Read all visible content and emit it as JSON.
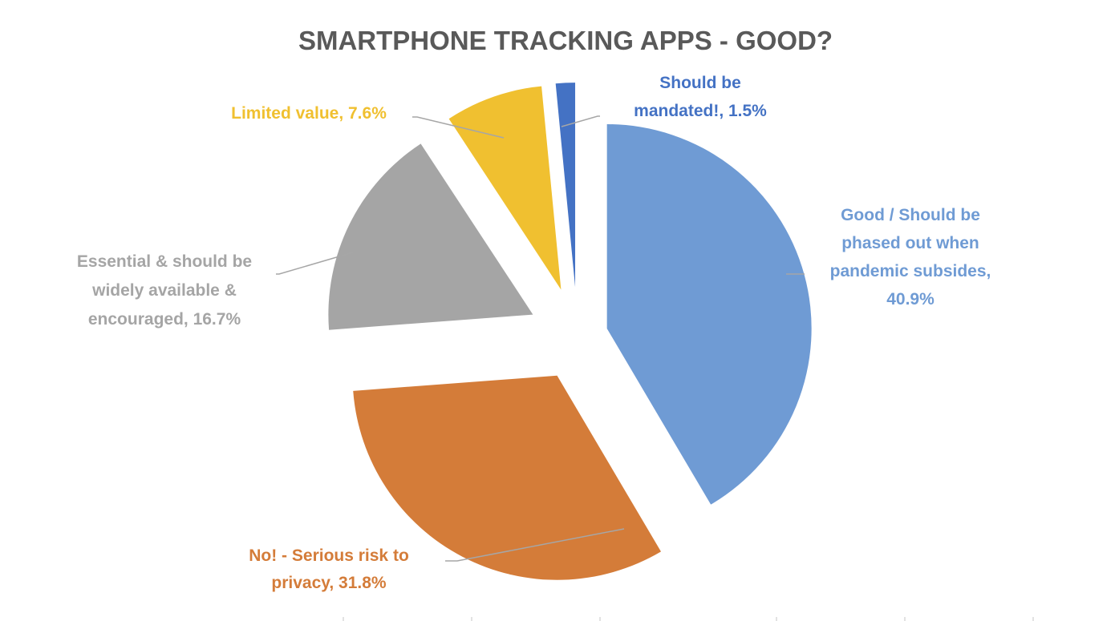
{
  "chart_data": {
    "type": "pie",
    "title": "SMARTPHONE TRACKING APPS - GOOD?",
    "exploded": true,
    "start_angle_deg": 0,
    "direction": "clockwise",
    "slices": [
      {
        "label_lines": [
          "Good / Should be",
          "phased out when",
          "pandemic subsides,",
          "40.9%"
        ],
        "value": 40.9,
        "color": "#6f9bd4"
      },
      {
        "label_lines": [
          "No! - Serious risk to",
          "privacy, 31.8%"
        ],
        "value": 31.8,
        "color": "#d47c39"
      },
      {
        "label_lines": [
          "Essential & should be",
          "widely available &",
          "encouraged, 16.7%"
        ],
        "value": 16.7,
        "color": "#a5a5a5"
      },
      {
        "label_lines": [
          "Limited value, 7.6%"
        ],
        "value": 7.6,
        "color": "#f0c030"
      },
      {
        "label_lines": [
          "Should be",
          "mandated!, 1.5%"
        ],
        "value": 1.5,
        "color": "#4472c4"
      }
    ],
    "label_colors": [
      "#6f9bd4",
      "#d47c39",
      "#a5a5a5",
      "#f0c030",
      "#4472c4"
    ]
  }
}
